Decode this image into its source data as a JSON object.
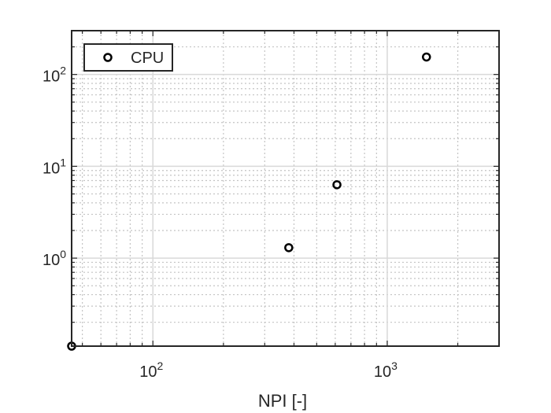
{
  "chart_data": {
    "type": "scatter",
    "xscale": "log",
    "yscale": "log",
    "xlabel": "NPI [-]",
    "ylabel": "",
    "xlim": [
      45,
      3000
    ],
    "ylim": [
      0.11,
      300
    ],
    "grid": true,
    "minor_grid": true,
    "legend_position": "top-left",
    "x_ticks": [
      {
        "value": 100,
        "base": "10",
        "exp": "2"
      },
      {
        "value": 1000,
        "base": "10",
        "exp": "3"
      }
    ],
    "y_ticks": [
      {
        "value": 1,
        "base": "10",
        "exp": "0"
      },
      {
        "value": 10,
        "base": "10",
        "exp": "1"
      },
      {
        "value": 100,
        "base": "10",
        "exp": "2"
      }
    ],
    "series": [
      {
        "name": "CPU",
        "marker": "circle-open",
        "color": "#000000",
        "points": [
          {
            "x": 45,
            "y": 0.11
          },
          {
            "x": 380,
            "y": 1.3
          },
          {
            "x": 610,
            "y": 6.3
          },
          {
            "x": 1470,
            "y": 155
          }
        ]
      }
    ]
  }
}
